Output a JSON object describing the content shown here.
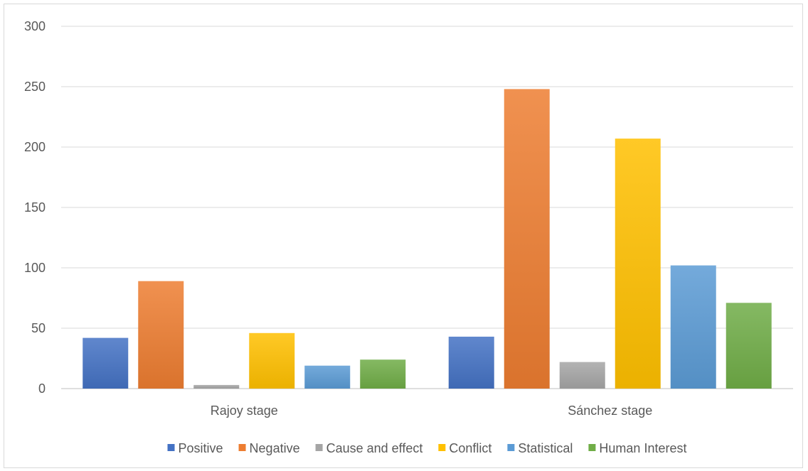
{
  "chart_data": {
    "type": "bar",
    "categories": [
      "Rajoy stage",
      "Sánchez stage"
    ],
    "series": [
      {
        "name": "Positive",
        "values": [
          42,
          43
        ],
        "color": "#4472c4"
      },
      {
        "name": "Negative",
        "values": [
          89,
          248
        ],
        "color": "#ed7d31"
      },
      {
        "name": "Cause and effect",
        "values": [
          3,
          22
        ],
        "color": "#a5a5a5"
      },
      {
        "name": "Conflict",
        "values": [
          46,
          207
        ],
        "color": "#ffc000"
      },
      {
        "name": "Statistical",
        "values": [
          19,
          102
        ],
        "color": "#5b9bd5"
      },
      {
        "name": "Human Interest",
        "values": [
          24,
          71
        ],
        "color": "#70ad47"
      }
    ],
    "yticks": [
      "0",
      "50",
      "100",
      "150",
      "200",
      "250",
      "300"
    ],
    "ylim": [
      0,
      300
    ],
    "grid": true,
    "legend_position": "bottom"
  }
}
